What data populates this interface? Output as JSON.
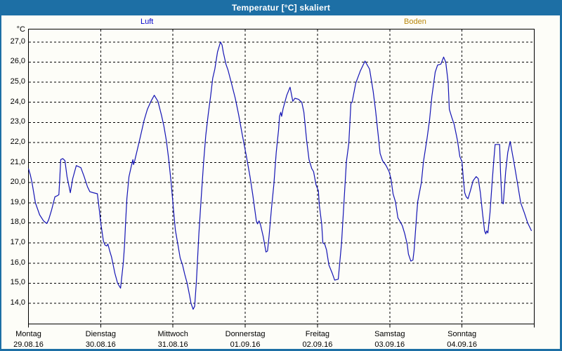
{
  "window": {
    "title": "Temperatur [°C] skaliert",
    "titlebar_color": "#1d6fa5",
    "border_color": "#1d6fa5",
    "background_color": "#fdfdf8"
  },
  "legend": [
    {
      "key": "luft",
      "label": "Luft",
      "color": "#0000cc"
    },
    {
      "key": "boden",
      "label": "Boden",
      "color": "#b8860b"
    }
  ],
  "chart_data": {
    "type": "line",
    "title": "Temperatur [°C] skaliert",
    "unit_label": "°C",
    "grid": "dashed",
    "grid_color": "#000000",
    "ylim": [
      12.97,
      27.64
    ],
    "yticks": [
      {
        "value": 27,
        "label": "27,0"
      },
      {
        "value": 26,
        "label": "26,0"
      },
      {
        "value": 25,
        "label": "25,0"
      },
      {
        "value": 24,
        "label": "24,0"
      },
      {
        "value": 23,
        "label": "23,0"
      },
      {
        "value": 22,
        "label": "22,0"
      },
      {
        "value": 21,
        "label": "21,0"
      },
      {
        "value": 20,
        "label": "20,0"
      },
      {
        "value": 19,
        "label": "19,0"
      },
      {
        "value": 18,
        "label": "18,0"
      },
      {
        "value": 17,
        "label": "17,0"
      },
      {
        "value": 16,
        "label": "16,0"
      },
      {
        "value": 15,
        "label": "15,0"
      },
      {
        "value": 14,
        "label": "14,0"
      }
    ],
    "xlim_hours": [
      0,
      168
    ],
    "xticks": [
      {
        "hours": 0,
        "day": "Montag",
        "date": "29.08.16"
      },
      {
        "hours": 24,
        "day": "Dienstag",
        "date": "30.08.16"
      },
      {
        "hours": 48,
        "day": "Mittwoch",
        "date": "31.08.16"
      },
      {
        "hours": 72,
        "day": "Donnerstag",
        "date": "01.09.16"
      },
      {
        "hours": 96,
        "day": "Freitag",
        "date": "02.09.16"
      },
      {
        "hours": 120,
        "day": "Samstag",
        "date": "03.09.16"
      },
      {
        "hours": 144,
        "day": "Sonntag",
        "date": "04.09.16"
      }
    ],
    "series": [
      {
        "name": "Luft",
        "color": "#1414b4",
        "visible": true,
        "points_hours_temp": [
          [
            0,
            20.7
          ],
          [
            0.6,
            20.4
          ],
          [
            1.2,
            20.0
          ],
          [
            2.3,
            19.0
          ],
          [
            3.7,
            18.4
          ],
          [
            5.0,
            18.1
          ],
          [
            6.1,
            17.97
          ],
          [
            6.7,
            18.15
          ],
          [
            7.7,
            18.65
          ],
          [
            8.8,
            19.3
          ],
          [
            9.6,
            19.35
          ],
          [
            10.1,
            19.4
          ],
          [
            10.4,
            20.2
          ],
          [
            10.7,
            21.15
          ],
          [
            11.4,
            21.2
          ],
          [
            12.1,
            21.1
          ],
          [
            12.8,
            20.3
          ],
          [
            13.9,
            19.5
          ],
          [
            14.7,
            20.2
          ],
          [
            15.9,
            20.85
          ],
          [
            17.4,
            20.75
          ],
          [
            18.5,
            20.3
          ],
          [
            19.6,
            19.8
          ],
          [
            20.4,
            19.55
          ],
          [
            21.5,
            19.5
          ],
          [
            22.9,
            19.45
          ],
          [
            23.5,
            18.7
          ],
          [
            24.0,
            18.0
          ],
          [
            24.9,
            17.1
          ],
          [
            25.4,
            16.9
          ],
          [
            26.0,
            16.85
          ],
          [
            26.4,
            16.95
          ],
          [
            27.0,
            16.6
          ],
          [
            27.6,
            16.3
          ],
          [
            28.7,
            15.5
          ],
          [
            29.6,
            15.0
          ],
          [
            30.6,
            14.75
          ],
          [
            31.5,
            16.0
          ],
          [
            31.9,
            16.85
          ],
          [
            32.3,
            18.1
          ],
          [
            32.7,
            19.2
          ],
          [
            33.4,
            20.3
          ],
          [
            34.2,
            20.85
          ],
          [
            34.7,
            21.15
          ],
          [
            34.9,
            20.9
          ],
          [
            35.3,
            21.1
          ],
          [
            36.1,
            21.6
          ],
          [
            37.2,
            22.3
          ],
          [
            38.4,
            23.1
          ],
          [
            39.5,
            23.65
          ],
          [
            40.7,
            24.05
          ],
          [
            41.8,
            24.35
          ],
          [
            43.0,
            24.05
          ],
          [
            44.2,
            23.35
          ],
          [
            45.0,
            22.8
          ],
          [
            45.8,
            22.1
          ],
          [
            46.6,
            21.15
          ],
          [
            47.4,
            20.0
          ],
          [
            48.2,
            18.6
          ],
          [
            48.8,
            17.65
          ],
          [
            49.6,
            16.95
          ],
          [
            50.4,
            16.25
          ],
          [
            51.2,
            15.9
          ],
          [
            51.9,
            15.45
          ],
          [
            52.7,
            15.0
          ],
          [
            53.5,
            14.4
          ],
          [
            54.0,
            14.0
          ],
          [
            54.7,
            13.7
          ],
          [
            55.2,
            13.85
          ],
          [
            55.8,
            15.1
          ],
          [
            56.6,
            17.45
          ],
          [
            57.4,
            19.3
          ],
          [
            58.2,
            21.05
          ],
          [
            58.9,
            22.35
          ],
          [
            59.7,
            23.4
          ],
          [
            60.5,
            24.3
          ],
          [
            61.2,
            25.2
          ],
          [
            61.9,
            25.65
          ],
          [
            62.8,
            26.5
          ],
          [
            63.8,
            27.0
          ],
          [
            64.3,
            26.85
          ],
          [
            64.7,
            26.5
          ],
          [
            65.6,
            25.9
          ],
          [
            66.3,
            25.6
          ],
          [
            67.5,
            24.9
          ],
          [
            68.7,
            24.2
          ],
          [
            69.8,
            23.4
          ],
          [
            71.0,
            22.4
          ],
          [
            72.4,
            21.3
          ],
          [
            73.6,
            20.3
          ],
          [
            74.5,
            19.4
          ],
          [
            75.7,
            18.1
          ],
          [
            76.1,
            17.95
          ],
          [
            76.6,
            18.1
          ],
          [
            77.1,
            17.9
          ],
          [
            78.0,
            17.3
          ],
          [
            78.9,
            16.55
          ],
          [
            79.4,
            16.6
          ],
          [
            79.9,
            17.3
          ],
          [
            80.7,
            18.7
          ],
          [
            81.5,
            19.9
          ],
          [
            82.3,
            21.5
          ],
          [
            83.1,
            22.65
          ],
          [
            83.4,
            23.3
          ],
          [
            83.8,
            23.5
          ],
          [
            84.1,
            23.3
          ],
          [
            84.6,
            23.7
          ],
          [
            85.8,
            24.35
          ],
          [
            86.9,
            24.75
          ],
          [
            87.8,
            24.05
          ],
          [
            88.5,
            24.2
          ],
          [
            89.7,
            24.15
          ],
          [
            90.8,
            24.0
          ],
          [
            91.5,
            23.5
          ],
          [
            92.4,
            22.1
          ],
          [
            93.2,
            21.15
          ],
          [
            94.1,
            20.7
          ],
          [
            94.7,
            20.55
          ],
          [
            95.5,
            19.9
          ],
          [
            96.3,
            19.6
          ],
          [
            96.6,
            18.9
          ],
          [
            97.4,
            17.95
          ],
          [
            97.8,
            17.0
          ],
          [
            98.4,
            16.95
          ],
          [
            99.0,
            16.65
          ],
          [
            99.8,
            15.9
          ],
          [
            100.9,
            15.5
          ],
          [
            101.7,
            15.15
          ],
          [
            102.9,
            15.2
          ],
          [
            104.0,
            17.0
          ],
          [
            104.8,
            19.0
          ],
          [
            105.6,
            21.05
          ],
          [
            106.4,
            21.95
          ],
          [
            107.1,
            23.95
          ],
          [
            107.5,
            24.0
          ],
          [
            108.7,
            24.95
          ],
          [
            110.2,
            25.55
          ],
          [
            111.8,
            26.05
          ],
          [
            113.3,
            25.65
          ],
          [
            114.5,
            24.55
          ],
          [
            115.3,
            23.6
          ],
          [
            116.1,
            22.45
          ],
          [
            116.8,
            21.45
          ],
          [
            117.6,
            21.1
          ],
          [
            118.8,
            20.85
          ],
          [
            119.8,
            20.55
          ],
          [
            120.4,
            20.2
          ],
          [
            121.1,
            19.45
          ],
          [
            121.9,
            19.05
          ],
          [
            122.7,
            18.25
          ],
          [
            123.5,
            18.05
          ],
          [
            124.2,
            17.85
          ],
          [
            125.0,
            17.45
          ],
          [
            125.8,
            16.95
          ],
          [
            126.2,
            16.45
          ],
          [
            127.0,
            16.1
          ],
          [
            127.7,
            16.15
          ],
          [
            128.1,
            16.65
          ],
          [
            128.9,
            18.3
          ],
          [
            129.3,
            19.05
          ],
          [
            130.5,
            20.0
          ],
          [
            131.2,
            21.05
          ],
          [
            132.4,
            22.2
          ],
          [
            133.2,
            23.1
          ],
          [
            134.0,
            24.3
          ],
          [
            135.1,
            25.5
          ],
          [
            135.9,
            25.85
          ],
          [
            137.0,
            25.9
          ],
          [
            137.9,
            26.25
          ],
          [
            138.6,
            26.0
          ],
          [
            139.4,
            25.0
          ],
          [
            139.8,
            23.65
          ],
          [
            140.6,
            23.25
          ],
          [
            141.4,
            22.9
          ],
          [
            142.5,
            22.1
          ],
          [
            143.3,
            21.3
          ],
          [
            144.0,
            21.05
          ],
          [
            144.5,
            20.1
          ],
          [
            144.9,
            19.5
          ],
          [
            145.4,
            19.3
          ],
          [
            146.0,
            19.2
          ],
          [
            146.8,
            19.6
          ],
          [
            147.7,
            20.1
          ],
          [
            148.7,
            20.3
          ],
          [
            149.4,
            20.2
          ],
          [
            150.1,
            19.5
          ],
          [
            150.8,
            18.5
          ],
          [
            151.5,
            17.6
          ],
          [
            151.9,
            17.45
          ],
          [
            152.2,
            17.6
          ],
          [
            152.6,
            17.5
          ],
          [
            153.3,
            18.5
          ],
          [
            154.0,
            20.0
          ],
          [
            154.6,
            21.2
          ],
          [
            155.0,
            21.9
          ],
          [
            155.7,
            21.9
          ],
          [
            156.5,
            21.9
          ],
          [
            156.8,
            20.5
          ],
          [
            157.3,
            19.0
          ],
          [
            157.7,
            18.95
          ],
          [
            158.5,
            20.55
          ],
          [
            159.2,
            21.5
          ],
          [
            160.0,
            22.05
          ],
          [
            161.2,
            21.05
          ],
          [
            162.4,
            20.0
          ],
          [
            163.5,
            19.0
          ],
          [
            164.7,
            18.5
          ],
          [
            165.8,
            18.0
          ],
          [
            167.1,
            17.6
          ]
        ]
      },
      {
        "name": "Boden",
        "color": "#b8860b",
        "visible": false,
        "points_hours_temp": []
      }
    ]
  }
}
